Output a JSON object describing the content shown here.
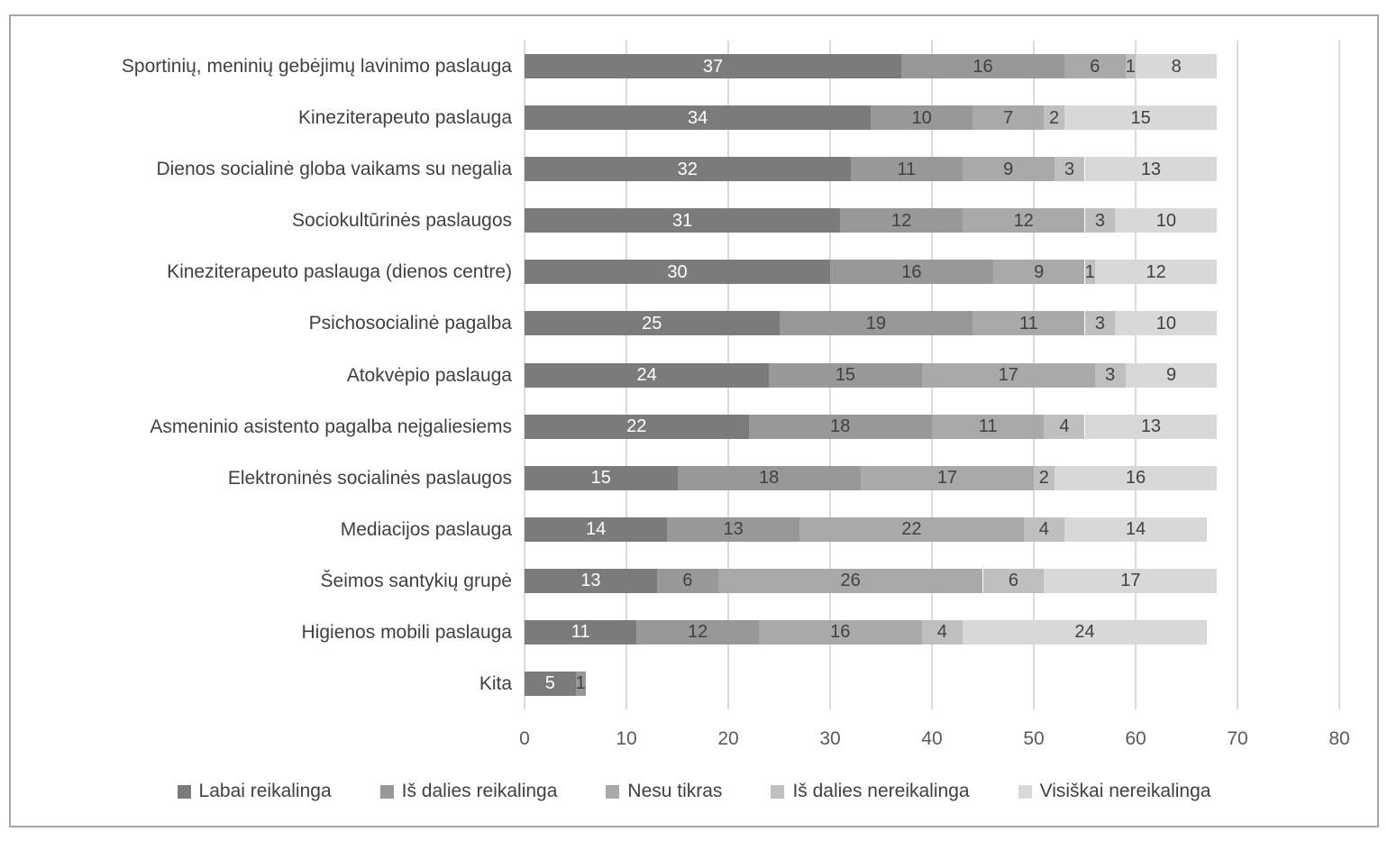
{
  "chart_data": {
    "type": "bar",
    "stacked": true,
    "orientation": "horizontal",
    "categories": [
      "Sportinių, meninių gebėjimų lavinimo paslauga",
      "Kineziterapeuto paslauga",
      "Dienos socialinė globa vaikams su negalia",
      "Sociokultūrinės paslaugos",
      "Kineziterapeuto paslauga (dienos centre)",
      "Psichosocialinė pagalba",
      "Atokvėpio paslauga",
      "Asmeninio asistento pagalba neįgaliesiems",
      "Elektroninės socialinės paslaugos",
      "Mediacijos paslauga",
      "Šeimos santykių grupė",
      "Higienos mobili paslauga",
      "Kita"
    ],
    "series": [
      {
        "name": "Labai reikalinga",
        "color": "#7b7b7b",
        "label_color": "#ffffff",
        "values": [
          37,
          34,
          32,
          31,
          30,
          25,
          24,
          22,
          15,
          14,
          13,
          11,
          5
        ]
      },
      {
        "name": "Iš dalies reikalinga",
        "color": "#989898",
        "label_color": "#404040",
        "values": [
          16,
          10,
          11,
          12,
          16,
          19,
          15,
          18,
          18,
          13,
          6,
          12,
          1
        ]
      },
      {
        "name": "Nesu tikras",
        "color": "#a9a9a9",
        "label_color": "#404040",
        "values": [
          6,
          7,
          9,
          12,
          9,
          11,
          17,
          11,
          17,
          22,
          26,
          16,
          0
        ]
      },
      {
        "name": "Iš dalies nereikalinga",
        "color": "#bfbfbf",
        "label_color": "#404040",
        "values": [
          1,
          2,
          3,
          3,
          1,
          3,
          3,
          4,
          2,
          4,
          6,
          4,
          0
        ]
      },
      {
        "name": "Visiškai nereikalinga",
        "color": "#d8d8d8",
        "label_color": "#404040",
        "values": [
          8,
          15,
          13,
          10,
          12,
          10,
          9,
          13,
          16,
          14,
          17,
          24,
          0
        ]
      }
    ],
    "x_ticks": [
      0,
      10,
      20,
      30,
      40,
      50,
      60,
      70,
      80
    ],
    "xlim": [
      0,
      80
    ],
    "grid": "vertical",
    "legend_position": "bottom",
    "colors": {
      "frame_border": "#a6a6a6",
      "gridline": "#dadada",
      "tick_text": "#595959",
      "category_text": "#404040",
      "background": "#ffffff"
    }
  }
}
